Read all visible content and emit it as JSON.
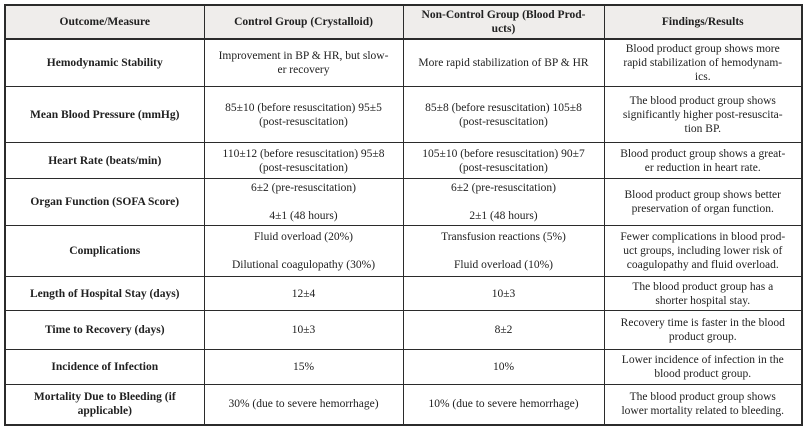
{
  "colors": {
    "header_bg": "#efedeb",
    "border": "#2b2b2b",
    "text": "#212121"
  },
  "table": {
    "columns": {
      "outcome": "Outcome/Measure",
      "control": "Control Group (Crystalloid)",
      "noncontrol": [
        "Non-Control Group (Blood Prod-",
        "ucts)"
      ],
      "findings": "Findings/Results"
    },
    "rows": [
      {
        "outcome": "Hemodynamic Stability",
        "control": [
          "Improvement in BP & HR, but slow-",
          "er recovery"
        ],
        "noncontrol": "More rapid stabilization of BP & HR",
        "findings": [
          "Blood product group shows more",
          "rapid stabilization of hemodynam-",
          "ics."
        ]
      },
      {
        "outcome": "Mean Blood Pressure (mmHg)",
        "control": [
          "85±10 (before resuscitation) 95±5",
          "(post-resuscitation)"
        ],
        "noncontrol": [
          "85±8 (before resuscitation) 105±8",
          "(post-resuscitation)"
        ],
        "findings": [
          "The blood product group shows",
          "significantly higher post-resuscita-",
          "tion BP."
        ]
      },
      {
        "outcome": "Heart Rate (beats/min)",
        "control": [
          "110±12 (before resuscitation) 95±8",
          "(post-resuscitation)"
        ],
        "noncontrol": [
          "105±10 (before resuscitation) 90±7",
          "(post-resuscitation)"
        ],
        "findings": [
          "Blood product group shows a great-",
          "er reduction in heart rate."
        ]
      },
      {
        "outcome": "Organ Function (SOFA Score)",
        "control": [
          "6±2 (pre-resuscitation)",
          "",
          "4±1 (48 hours)"
        ],
        "noncontrol": [
          "6±2 (pre-resuscitation)",
          "",
          "2±1 (48 hours)"
        ],
        "findings": [
          "Blood product group shows better",
          "preservation of organ function."
        ]
      },
      {
        "outcome": "Complications",
        "control": [
          "Fluid overload (20%)",
          "",
          "Dilutional coagulopathy (30%)"
        ],
        "noncontrol": [
          "Transfusion reactions (5%)",
          "",
          "Fluid overload (10%)"
        ],
        "findings": [
          "Fewer complications in blood prod-",
          "uct groups, including lower risk of",
          "coagulopathy and fluid overload."
        ]
      },
      {
        "outcome": "Length of Hospital Stay (days)",
        "control": "12±4",
        "noncontrol": "10±3",
        "findings": [
          "The blood product group has a",
          "shorter hospital stay."
        ]
      },
      {
        "outcome": "Time to Recovery (days)",
        "control": "10±3",
        "noncontrol": "8±2",
        "findings": [
          "Recovery time is faster in the blood",
          "product group."
        ]
      },
      {
        "outcome": "Incidence of Infection",
        "control": "15%",
        "noncontrol": "10%",
        "findings": [
          "Lower incidence of infection in the",
          "blood product group."
        ]
      },
      {
        "outcome": [
          "Mortality Due to Bleeding (if",
          "applicable)"
        ],
        "control": "30% (due to severe hemorrhage)",
        "noncontrol": "10% (due to severe hemorrhage)",
        "findings": [
          "The blood product group shows",
          "lower mortality related to bleeding."
        ]
      }
    ]
  }
}
